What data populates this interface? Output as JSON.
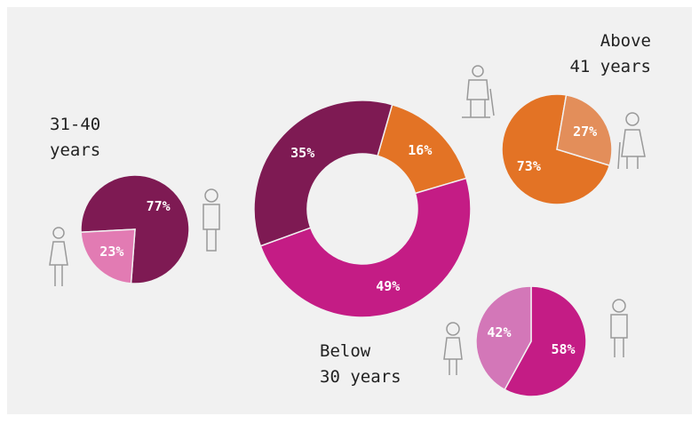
{
  "chart_data": [
    {
      "type": "donut",
      "values": [
        16,
        49,
        35
      ],
      "value_labels": [
        "16%",
        "49%",
        "35%"
      ],
      "colors": [
        "#e37325",
        "#c41c85",
        "#7e1a53"
      ]
    },
    {
      "type": "pie",
      "title": "31-40\nyears",
      "values": [
        77,
        23
      ],
      "value_labels": [
        "77%",
        "23%"
      ],
      "colors": [
        "#7e1a53",
        "#e27bb3"
      ]
    },
    {
      "type": "pie",
      "title": "Above\n41 years",
      "values": [
        73,
        27
      ],
      "value_labels": [
        "73%",
        "27%"
      ],
      "colors": [
        "#e37325",
        "#e38e5a"
      ]
    },
    {
      "type": "pie",
      "title": "Below\n30 years",
      "values": [
        58,
        42
      ],
      "value_labels": [
        "58%",
        "42%"
      ],
      "colors": [
        "#c41c85",
        "#d377b8"
      ]
    }
  ]
}
